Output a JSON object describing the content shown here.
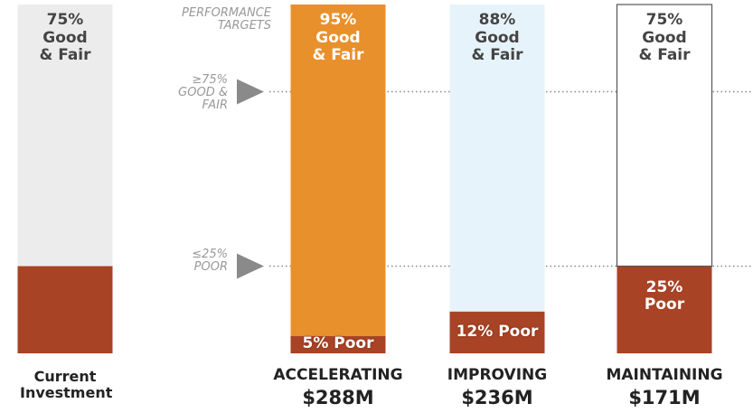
{
  "chart_data": {
    "type": "stacked_bar",
    "annotation": "PERFORMANCE TARGETS",
    "categories": [
      "Current Investment",
      "ACCELERATING",
      "IMPROVING",
      "MAINTAINING"
    ],
    "funding_labels": [
      null,
      "$288M",
      "$236M",
      "$171M"
    ],
    "series": [
      {
        "name": "Poor",
        "color": "#a84325",
        "values": [
          25,
          5,
          12,
          25
        ],
        "value_labels": [
          null,
          "5%",
          "12%",
          "25%"
        ]
      },
      {
        "name": "Good & Fair",
        "colors": [
          "#ececec",
          "#e8902c",
          "#e6f3fa",
          "#ffffff"
        ],
        "outlines": [
          null,
          null,
          null,
          "#555555"
        ],
        "values": [
          75,
          95,
          88,
          75
        ],
        "value_labels": [
          "75%",
          "95%",
          "88%",
          "75%"
        ]
      }
    ],
    "targets": [
      {
        "value": 75,
        "label": "≥75% GOOD & FAIR"
      },
      {
        "value": 25,
        "label": "≤25% POOR"
      }
    ],
    "ylim": [
      0,
      100
    ]
  }
}
